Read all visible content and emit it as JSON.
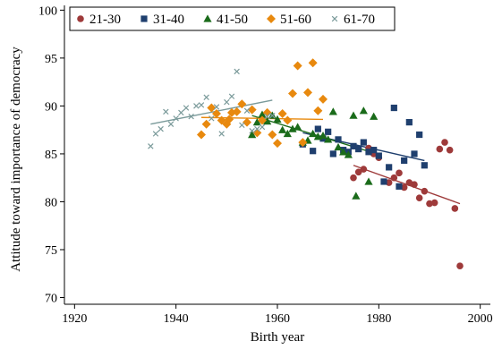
{
  "chart_data": {
    "type": "scatter",
    "title": "",
    "xlabel": "Birth year",
    "ylabel": "Attitude toward importance of democracy",
    "xlim": [
      1918,
      2002
    ],
    "ylim": [
      69.3,
      100.5
    ],
    "xticks": [
      1920,
      1940,
      1960,
      1980,
      2000
    ],
    "yticks": [
      70,
      75,
      80,
      85,
      90,
      95,
      100
    ],
    "grid": false,
    "legend_position": "top",
    "series": [
      {
        "name": "21-30",
        "color": "#9e3a3a",
        "marker": "circle",
        "points": [
          [
            1975,
            82.5
          ],
          [
            1976,
            83.1
          ],
          [
            1977,
            83.4
          ],
          [
            1978,
            85.6
          ],
          [
            1979,
            85.0
          ],
          [
            1980,
            84.6
          ],
          [
            1982,
            82.0
          ],
          [
            1983,
            82.5
          ],
          [
            1984,
            83.0
          ],
          [
            1985,
            81.5
          ],
          [
            1986,
            82.0
          ],
          [
            1987,
            81.8
          ],
          [
            1988,
            80.4
          ],
          [
            1989,
            81.1
          ],
          [
            1990,
            79.8
          ],
          [
            1991,
            79.9
          ],
          [
            1992,
            85.5
          ],
          [
            1993,
            86.2
          ],
          [
            1994,
            85.4
          ],
          [
            1995,
            79.3
          ],
          [
            1996,
            73.3
          ]
        ],
        "fit": [
          [
            1975,
            83.8
          ],
          [
            1996,
            79.8
          ]
        ]
      },
      {
        "name": "31-40",
        "color": "#1f3f6e",
        "marker": "square",
        "points": [
          [
            1965,
            86.0
          ],
          [
            1967,
            85.3
          ],
          [
            1968,
            87.6
          ],
          [
            1969,
            86.6
          ],
          [
            1970,
            87.3
          ],
          [
            1971,
            85.0
          ],
          [
            1972,
            86.5
          ],
          [
            1973,
            85.4
          ],
          [
            1974,
            85.2
          ],
          [
            1975,
            85.8
          ],
          [
            1976,
            85.5
          ],
          [
            1977,
            86.2
          ],
          [
            1978,
            85.2
          ],
          [
            1979,
            85.4
          ],
          [
            1980,
            84.8
          ],
          [
            1981,
            82.1
          ],
          [
            1982,
            83.6
          ],
          [
            1983,
            89.8
          ],
          [
            1984,
            81.6
          ],
          [
            1985,
            84.3
          ],
          [
            1986,
            88.3
          ],
          [
            1987,
            85.0
          ],
          [
            1988,
            87.0
          ],
          [
            1989,
            83.8
          ]
        ],
        "fit": [
          [
            1965,
            87.2
          ],
          [
            1989,
            84.3
          ]
        ]
      },
      {
        "name": "41-50",
        "color": "#1a6b1a",
        "marker": "triangle",
        "points": [
          [
            1955,
            87.0
          ],
          [
            1956,
            88.3
          ],
          [
            1957,
            89.1
          ],
          [
            1958,
            88.4
          ],
          [
            1959,
            89.0
          ],
          [
            1960,
            88.6
          ],
          [
            1961,
            87.5
          ],
          [
            1962,
            87.1
          ],
          [
            1963,
            87.6
          ],
          [
            1964,
            87.8
          ],
          [
            1965,
            86.2
          ],
          [
            1966,
            86.4
          ],
          [
            1967,
            87.1
          ],
          [
            1968,
            86.8
          ],
          [
            1969,
            86.9
          ],
          [
            1970,
            86.5
          ],
          [
            1971,
            89.4
          ],
          [
            1972,
            85.7
          ],
          [
            1973,
            85.2
          ],
          [
            1974,
            84.9
          ],
          [
            1975,
            89.0
          ],
          [
            1975.5,
            80.6
          ],
          [
            1977,
            89.5
          ],
          [
            1978,
            82.1
          ],
          [
            1979,
            88.9
          ]
        ],
        "fit": [
          [
            1955,
            89.0
          ],
          [
            1979,
            85.1
          ]
        ]
      },
      {
        "name": "51-60",
        "color": "#e8890e",
        "marker": "diamond",
        "points": [
          [
            1945,
            87.0
          ],
          [
            1946,
            88.1
          ],
          [
            1947,
            89.8
          ],
          [
            1948,
            89.2
          ],
          [
            1949,
            88.5
          ],
          [
            1950,
            88.1
          ],
          [
            1950.5,
            88.6
          ],
          [
            1951,
            89.3
          ],
          [
            1952,
            89.4
          ],
          [
            1953,
            90.2
          ],
          [
            1954,
            88.3
          ],
          [
            1955,
            89.6
          ],
          [
            1956,
            87.2
          ],
          [
            1957,
            88.5
          ],
          [
            1958,
            89.3
          ],
          [
            1959,
            87.0
          ],
          [
            1960,
            86.1
          ],
          [
            1961,
            89.2
          ],
          [
            1962,
            88.5
          ],
          [
            1963,
            91.3
          ],
          [
            1964,
            94.2
          ],
          [
            1965,
            86.2
          ],
          [
            1966,
            91.4
          ],
          [
            1967,
            94.5
          ],
          [
            1968,
            89.5
          ],
          [
            1969,
            90.7
          ]
        ],
        "fit": [
          [
            1945,
            88.8
          ],
          [
            1969,
            88.6
          ]
        ]
      },
      {
        "name": "61-70",
        "color": "#7a9a9a",
        "marker": "x",
        "points": [
          [
            1935,
            85.8
          ],
          [
            1936,
            87.1
          ],
          [
            1937,
            87.6
          ],
          [
            1938,
            89.4
          ],
          [
            1939,
            88.1
          ],
          [
            1940,
            88.7
          ],
          [
            1941,
            89.3
          ],
          [
            1942,
            89.8
          ],
          [
            1943,
            88.9
          ],
          [
            1944,
            90.0
          ],
          [
            1945,
            90.1
          ],
          [
            1946,
            90.9
          ],
          [
            1947,
            88.7
          ],
          [
            1948,
            89.9
          ],
          [
            1949,
            87.1
          ],
          [
            1950,
            90.4
          ],
          [
            1951,
            91.0
          ],
          [
            1952,
            93.6
          ],
          [
            1953,
            88.0
          ],
          [
            1954,
            89.5
          ],
          [
            1955,
            87.4
          ],
          [
            1956,
            87.6
          ],
          [
            1957,
            87.8
          ],
          [
            1958,
            88.9
          ],
          [
            1959,
            89.0
          ]
        ],
        "fit": [
          [
            1935,
            88.1
          ],
          [
            1959,
            90.6
          ]
        ]
      }
    ]
  }
}
